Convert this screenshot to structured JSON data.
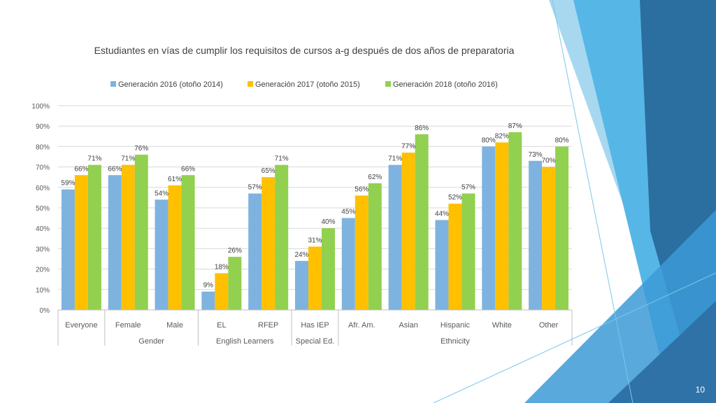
{
  "page_number": "10",
  "colors": {
    "series": [
      "#7EB3E0",
      "#FFC000",
      "#92D050"
    ],
    "grid": "#D9D9D9",
    "axis": "#BFBFBF"
  },
  "chart_data": {
    "type": "bar",
    "title": "Estudiantes en vías de cumplir los requisitos de cursos a-g después de dos años de preparatoria",
    "categories": [
      "Everyone",
      "Female",
      "Male",
      "EL",
      "RFEP",
      "Has IEP",
      "Afr. Am.",
      "Asian",
      "Hispanic",
      "White",
      "Other"
    ],
    "groups": [
      {
        "label": "Gender",
        "categories": [
          "Female",
          "Male"
        ]
      },
      {
        "label": "English Learners",
        "categories": [
          "EL",
          "RFEP"
        ]
      },
      {
        "label": "Special Ed.",
        "categories": [
          "Has IEP"
        ]
      },
      {
        "label": "Ethnicity",
        "categories": [
          "Afr. Am.",
          "Asian",
          "Hispanic",
          "White",
          "Other"
        ]
      }
    ],
    "series": [
      {
        "name": "Generación 2016 (otoño 2014)",
        "values": [
          59,
          66,
          54,
          9,
          57,
          24,
          45,
          71,
          44,
          80,
          73
        ],
        "labels": [
          "59%",
          "66%",
          "54%",
          "9%",
          "57%",
          "24%",
          "45%",
          "71%",
          "44%",
          "80%",
          "73%"
        ]
      },
      {
        "name": "Generación 2017 (otoño 2015)",
        "values": [
          66,
          71,
          61,
          18,
          65,
          31,
          56,
          77,
          52,
          82,
          70
        ],
        "labels": [
          "66%",
          "71%",
          "61%",
          "18%",
          "65%",
          "31%",
          "56%",
          "77%",
          "52%",
          "82%",
          "70%"
        ]
      },
      {
        "name": "Generación 2018 (otoño 2016)",
        "values": [
          71,
          76,
          66,
          26,
          71,
          40,
          62,
          86,
          57,
          87,
          80
        ],
        "labels": [
          "71%",
          "76%",
          "66%",
          "26%",
          "71%",
          "40%",
          "62%",
          "86%",
          "57%",
          "87%",
          "80%"
        ]
      }
    ],
    "yticks": [
      "0%",
      "10%",
      "20%",
      "30%",
      "40%",
      "50%",
      "60%",
      "70%",
      "80%",
      "90%",
      "100%"
    ],
    "ylim": [
      0,
      100
    ],
    "grid": true,
    "legend_position": "top"
  }
}
